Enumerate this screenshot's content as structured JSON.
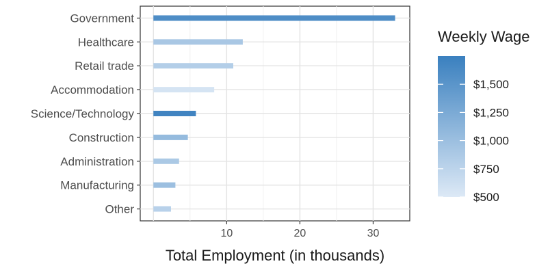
{
  "chart_data": {
    "type": "bar",
    "orientation": "horizontal",
    "categories": [
      "Government",
      "Healthcare",
      "Retail trade",
      "Accommodation",
      "Science/Technology",
      "Construction",
      "Administration",
      "Manufacturing",
      "Other"
    ],
    "values": [
      33.0,
      12.2,
      10.9,
      8.3,
      5.8,
      4.7,
      3.5,
      3.0,
      2.4
    ],
    "weekly_wage": [
      1600,
      900,
      820,
      560,
      1700,
      1050,
      880,
      1000,
      780
    ],
    "xlabel": "Total Employment (in thousands)",
    "ylabel": "",
    "xlim": [
      -1.8,
      35.0
    ],
    "xticks": [
      10,
      20,
      30
    ],
    "xtick_labels": [
      "10",
      "20",
      "30"
    ],
    "grid": true,
    "legend": {
      "title": "Weekly Wage",
      "placement": "right",
      "type": "colorbar",
      "range": [
        500,
        1750
      ],
      "ticks": [
        500,
        750,
        1000,
        1250,
        1500
      ],
      "tick_labels": [
        "$500",
        "$750",
        "$1,000",
        "$1,250",
        "$1,500"
      ],
      "low_color": "#dde9f6",
      "high_color": "#3a80bf"
    }
  }
}
